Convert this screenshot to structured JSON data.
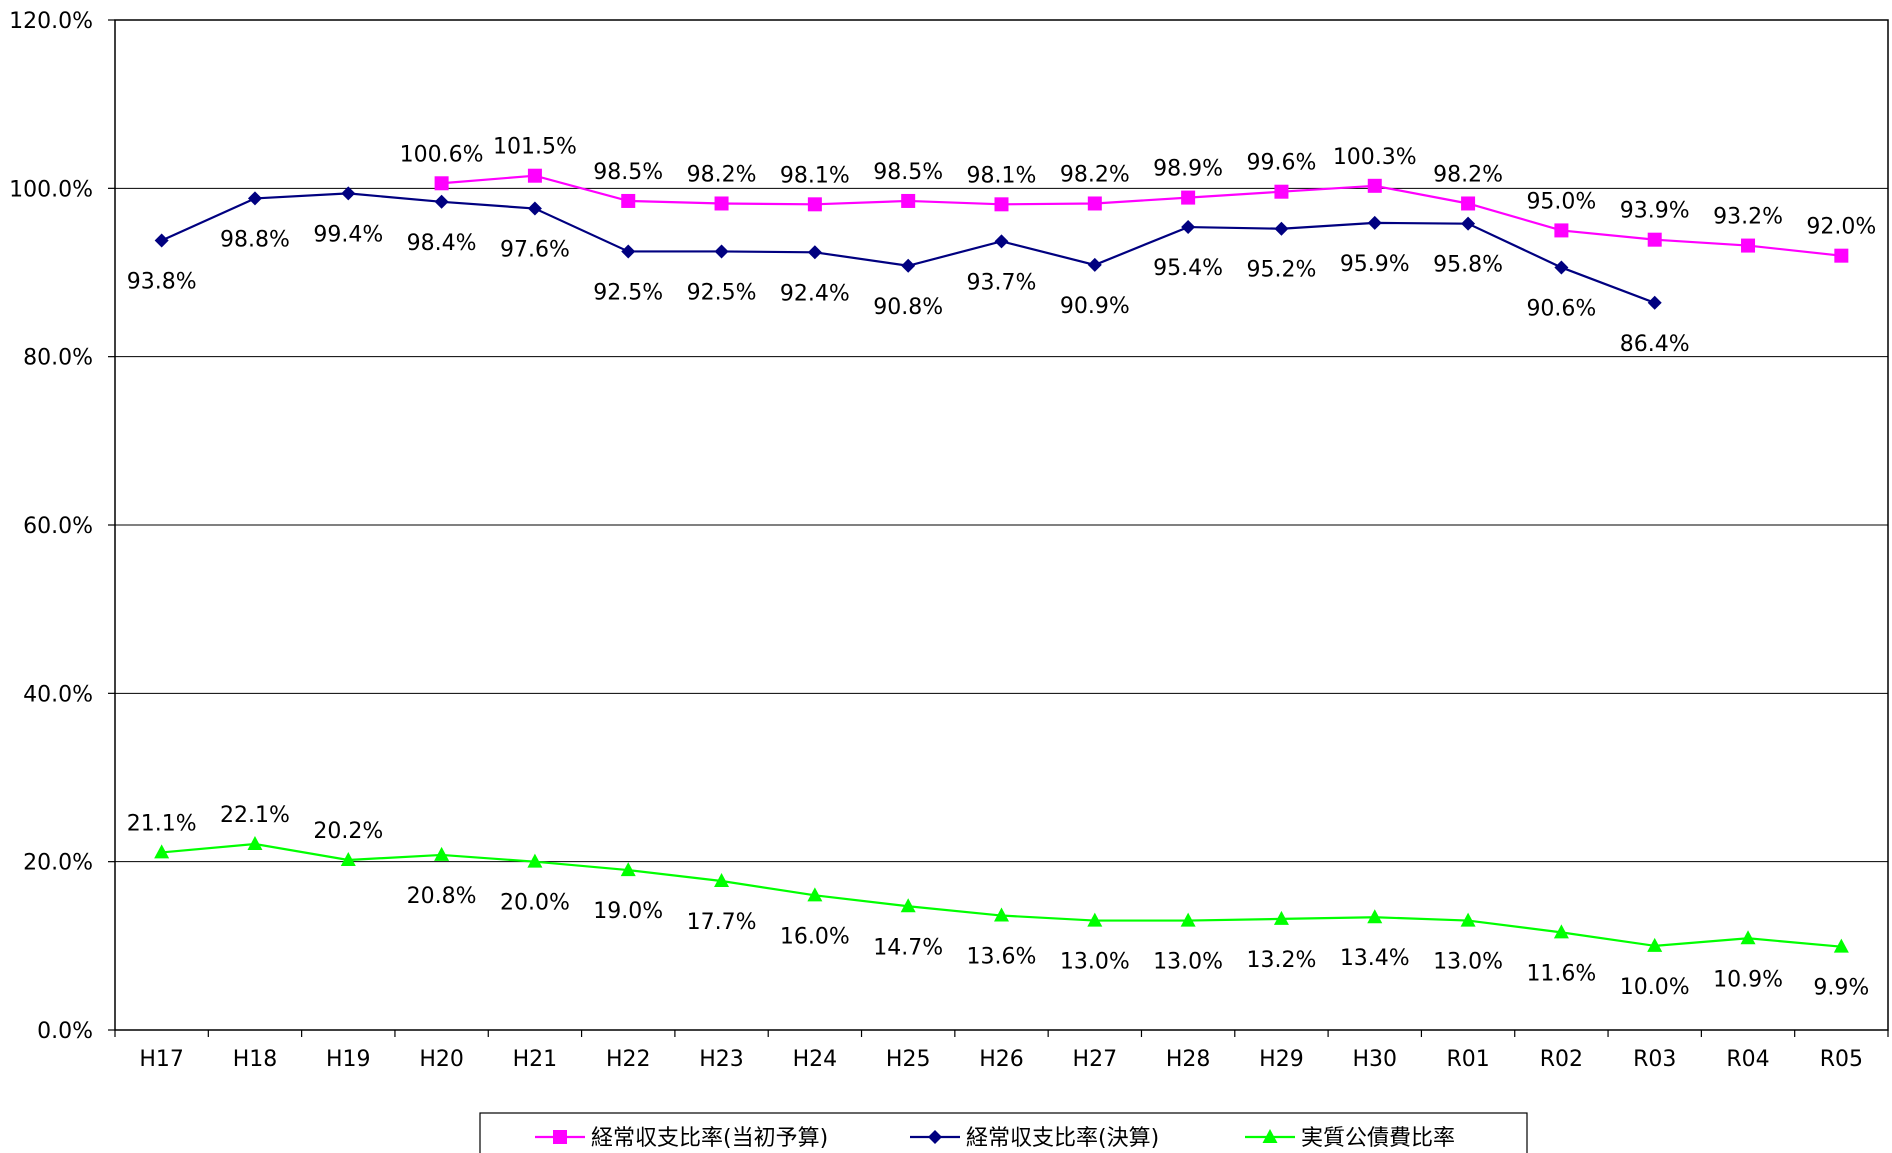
{
  "chart_data": {
    "type": "line",
    "categories": [
      "H17",
      "H18",
      "H19",
      "H20",
      "H21",
      "H22",
      "H23",
      "H24",
      "H25",
      "H26",
      "H27",
      "H28",
      "H29",
      "H30",
      "R01",
      "R02",
      "R03",
      "R04",
      "R05"
    ],
    "ylim": [
      0,
      120
    ],
    "yticks": [
      "0.0%",
      "20.0%",
      "40.0%",
      "60.0%",
      "80.0%",
      "100.0%",
      "120.0%"
    ],
    "ytick_values": [
      0,
      20,
      40,
      60,
      80,
      100,
      120
    ],
    "grid": true,
    "legend_position": "bottom",
    "series": [
      {
        "name": "経常収支比率(当初予算)",
        "color": "#ff00ff",
        "marker": "square",
        "values": [
          null,
          null,
          null,
          100.6,
          101.5,
          98.5,
          98.2,
          98.1,
          98.5,
          98.1,
          98.2,
          98.9,
          99.6,
          100.3,
          98.2,
          95.0,
          93.9,
          93.2,
          92.0
        ],
        "labels": [
          null,
          null,
          null,
          "100.6%",
          "101.5%",
          "98.5%",
          "98.2%",
          "98.1%",
          "98.5%",
          "98.1%",
          "98.2%",
          "98.9%",
          "99.6%",
          "100.3%",
          "98.2%",
          "95.0%",
          "93.9%",
          "93.2%",
          "92.0%"
        ],
        "label_side": "above"
      },
      {
        "name": "経常収支比率(決算)",
        "color": "#000080",
        "marker": "diamond",
        "values": [
          93.8,
          98.8,
          99.4,
          98.4,
          97.6,
          92.5,
          92.5,
          92.4,
          90.8,
          93.7,
          90.9,
          95.4,
          95.2,
          95.9,
          95.8,
          90.6,
          86.4,
          null,
          null
        ],
        "labels": [
          "93.8%",
          "98.8%",
          "99.4%",
          "98.4%",
          "97.6%",
          "92.5%",
          "92.5%",
          "92.4%",
          "90.8%",
          "93.7%",
          "90.9%",
          "95.4%",
          "95.2%",
          "95.9%",
          "95.8%",
          "90.6%",
          "86.4%",
          null,
          null
        ],
        "label_side": "below"
      },
      {
        "name": "実質公債費比率",
        "color": "#00ff00",
        "marker": "triangle",
        "values": [
          21.1,
          22.1,
          20.2,
          20.8,
          20.0,
          19.0,
          17.7,
          16.0,
          14.7,
          13.6,
          13.0,
          13.0,
          13.2,
          13.4,
          13.0,
          11.6,
          10.0,
          10.9,
          9.9
        ],
        "labels": [
          "21.1%",
          "22.1%",
          "20.2%",
          "20.8%",
          "20.0%",
          "19.0%",
          "17.7%",
          "16.0%",
          "14.7%",
          "13.6%",
          "13.0%",
          "13.0%",
          "13.2%",
          "13.4%",
          "13.0%",
          "11.6%",
          "10.0%",
          "10.9%",
          "9.9%"
        ],
        "label_sides": [
          "above",
          "above",
          "above",
          "below",
          "below",
          "below",
          "below",
          "below",
          "below",
          "below",
          "below",
          "below",
          "below",
          "below",
          "below",
          "below",
          "below",
          "below",
          "below"
        ]
      }
    ]
  }
}
